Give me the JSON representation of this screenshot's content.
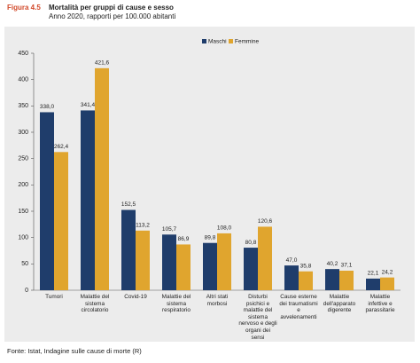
{
  "header": {
    "figure": "Figura 4.5",
    "title": "Mortalità per gruppi di cause e sesso",
    "subtitle": "Anno 2020, rapporti per 100.000 abitanti"
  },
  "chart_data": {
    "type": "bar",
    "categories": [
      "Tumori",
      "Malattie del sistema circolatorio",
      "Covid-19",
      "Malattie del sistema respiratorio",
      "Altri stati morbosi",
      "Disturbi psichici e malattie del sistema nervoso e degli organi dei sensi",
      "Cause esterne dei traumatismi e avvelenamenti",
      "Malattie dell'apparato digerente",
      "Malattie infettive e parassitarie"
    ],
    "series": [
      {
        "name": "Maschi",
        "color": "#1f3d6b",
        "values": [
          338.0,
          341.4,
          152.5,
          105.7,
          89.8,
          80.8,
          47.0,
          40.2,
          22.1
        ],
        "value_labels": [
          "338,0",
          "341,4",
          "152,5",
          "105,7",
          "89,8",
          "80,8",
          "47,0",
          "40,2",
          "22,1"
        ]
      },
      {
        "name": "Femmine",
        "color": "#e0a52e",
        "values": [
          262.4,
          421.6,
          113.2,
          86.9,
          108.0,
          120.6,
          35.8,
          37.1,
          24.2
        ],
        "value_labels": [
          "262,4",
          "421,6",
          "113,2",
          "86,9",
          "108,0",
          "120,6",
          "35,8",
          "37,1",
          "24,2"
        ]
      }
    ],
    "ylim": [
      0,
      450
    ],
    "yticks": [
      0,
      50,
      100,
      150,
      200,
      250,
      300,
      350,
      400,
      450
    ],
    "grid": false,
    "legend": "top"
  },
  "footer": {
    "source": "Fonte: Istat, Indagine sulle cause di morte (R)"
  }
}
